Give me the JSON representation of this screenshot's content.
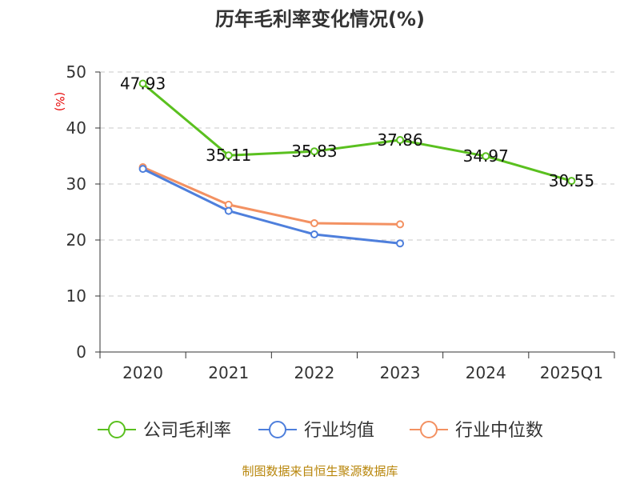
{
  "chart_data": {
    "type": "line",
    "title": "历年毛利率变化情况(%)",
    "ylabel": "(%)",
    "categories": [
      "2020",
      "2021",
      "2022",
      "2023",
      "2024",
      "2025Q1"
    ],
    "ylim": [
      0,
      50
    ],
    "yticks": [
      0,
      10,
      20,
      30,
      40,
      50
    ],
    "grid": true,
    "legend_position": "bottom",
    "series": [
      {
        "name": "公司毛利率",
        "color": "#5ac01f",
        "values": [
          47.93,
          35.11,
          35.83,
          37.86,
          34.97,
          30.55
        ],
        "labels": [
          "47.93",
          "35.11",
          "35.83",
          "37.86",
          "34.97",
          "30.55"
        ]
      },
      {
        "name": "行业均值",
        "color": "#4e7fdc",
        "values": [
          32.7,
          25.2,
          21.0,
          19.4,
          null,
          null
        ]
      },
      {
        "name": "行业中位数",
        "color": "#f39162",
        "values": [
          33.0,
          26.3,
          23.0,
          22.8,
          null,
          null
        ]
      }
    ]
  },
  "source": "制图数据来自恒生聚源数据库"
}
